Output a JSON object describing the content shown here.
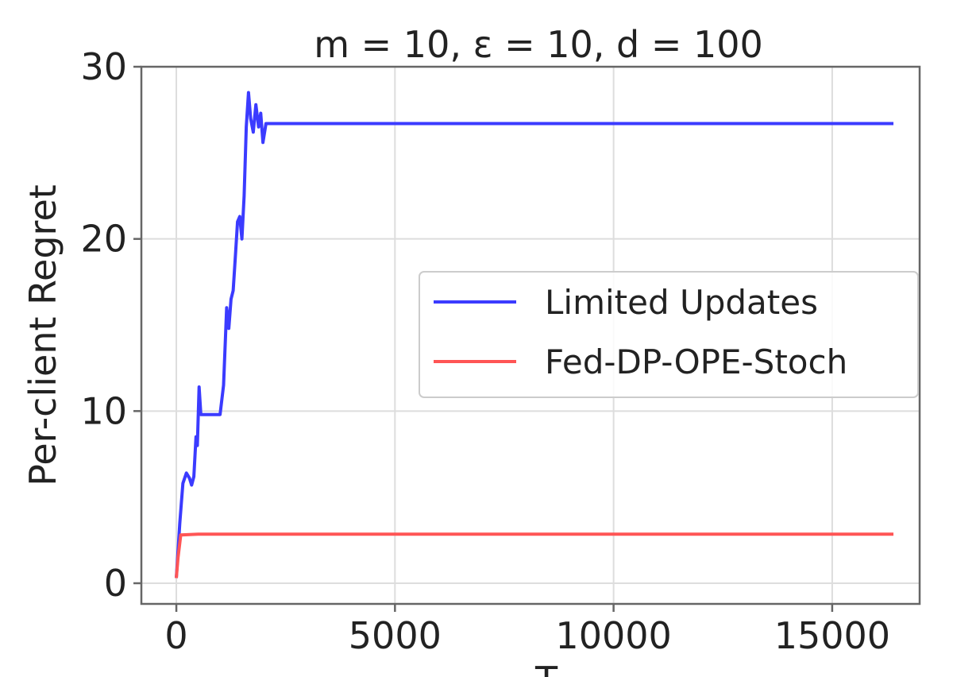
{
  "chart_data": {
    "type": "line",
    "title": "m = 10, ε = 10, d = 100",
    "xlabel": "T",
    "ylabel": "Per-client Regret",
    "xlim": [
      -800,
      17000
    ],
    "ylim": [
      -1.2,
      30
    ],
    "xticks": [
      0,
      5000,
      10000,
      15000
    ],
    "xtick_labels": [
      "0",
      "5000",
      "10000",
      "15000"
    ],
    "yticks": [
      0,
      10,
      20,
      30
    ],
    "ytick_labels": [
      "0",
      "10",
      "20",
      "30"
    ],
    "grid": true,
    "legend_position": "center-right",
    "series": [
      {
        "name": "Limited Updates",
        "color": "#3b3bff",
        "points": [
          [
            0,
            0.3
          ],
          [
            80,
            3.5
          ],
          [
            150,
            5.8
          ],
          [
            230,
            6.4
          ],
          [
            300,
            6.1
          ],
          [
            350,
            5.7
          ],
          [
            400,
            6.2
          ],
          [
            450,
            8.5
          ],
          [
            480,
            8.0
          ],
          [
            520,
            11.4
          ],
          [
            560,
            9.8
          ],
          [
            700,
            9.8
          ],
          [
            850,
            9.8
          ],
          [
            1000,
            9.8
          ],
          [
            1080,
            11.5
          ],
          [
            1150,
            16.0
          ],
          [
            1200,
            14.8
          ],
          [
            1250,
            16.5
          ],
          [
            1300,
            17.0
          ],
          [
            1350,
            19.0
          ],
          [
            1400,
            21.0
          ],
          [
            1450,
            21.3
          ],
          [
            1500,
            20.0
          ],
          [
            1550,
            22.5
          ],
          [
            1600,
            26.5
          ],
          [
            1650,
            28.5
          ],
          [
            1700,
            27.0
          ],
          [
            1760,
            26.2
          ],
          [
            1820,
            27.8
          ],
          [
            1880,
            26.5
          ],
          [
            1930,
            27.3
          ],
          [
            1980,
            25.6
          ],
          [
            2050,
            26.7
          ],
          [
            2300,
            26.7
          ],
          [
            5000,
            26.7
          ],
          [
            10000,
            26.7
          ],
          [
            16400,
            26.7
          ]
        ]
      },
      {
        "name": "Fed-DP-OPE-Stoch",
        "color": "#ff5555",
        "points": [
          [
            0,
            0.3
          ],
          [
            40,
            1.5
          ],
          [
            100,
            2.8
          ],
          [
            500,
            2.85
          ],
          [
            16400,
            2.85
          ]
        ]
      }
    ]
  }
}
